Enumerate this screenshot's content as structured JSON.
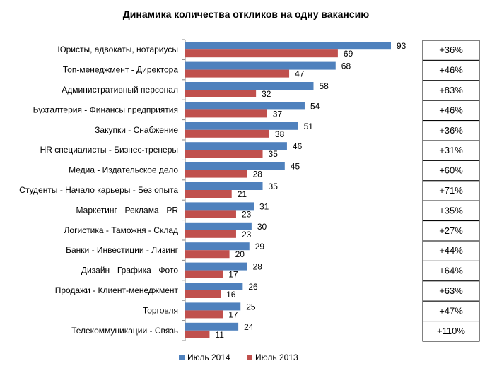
{
  "chart_data": {
    "type": "bar",
    "orientation": "horizontal",
    "title": "Динамика количества откликов на одну вакансию",
    "xlabel": "",
    "ylabel": "",
    "xlim": [
      0,
      93
    ],
    "grid": false,
    "legend_position": "bottom",
    "categories": [
      "Юристы, адвокаты, нотариусы",
      "Топ-менеджмент  - Директора",
      "Административный персонал",
      "Бухгалтерия - Финансы предприятия",
      "Закупки - Снабжение",
      "HR специалисты - Бизнес-тренеры",
      "Медиа - Издательское дело",
      "Студенты  - Начало карьеры - Без опыта",
      "Маркетинг - Реклама - PR",
      "Логистика - Таможня - Склад",
      "Банки - Инвестиции  - Лизинг",
      "Дизайн - Графика - Фото",
      "Продажи - Клиент-менеджмент",
      "Торговля",
      "Телекоммуникации  - Связь"
    ],
    "series": [
      {
        "name": "Июль 2014",
        "color": "#4f81bd",
        "values": [
          93,
          68,
          58,
          54,
          51,
          46,
          45,
          35,
          31,
          30,
          29,
          28,
          26,
          25,
          24
        ]
      },
      {
        "name": "Июль 2013",
        "color": "#c0504d",
        "values": [
          69,
          47,
          32,
          37,
          38,
          35,
          28,
          21,
          23,
          23,
          20,
          17,
          16,
          17,
          11
        ]
      }
    ],
    "change_labels": [
      "+36%",
      "+46%",
      "+83%",
      "+46%",
      "+36%",
      "+31%",
      "+60%",
      "+71%",
      "+35%",
      "+27%",
      "+44%",
      "+64%",
      "+63%",
      "+47%",
      "+110%"
    ]
  }
}
